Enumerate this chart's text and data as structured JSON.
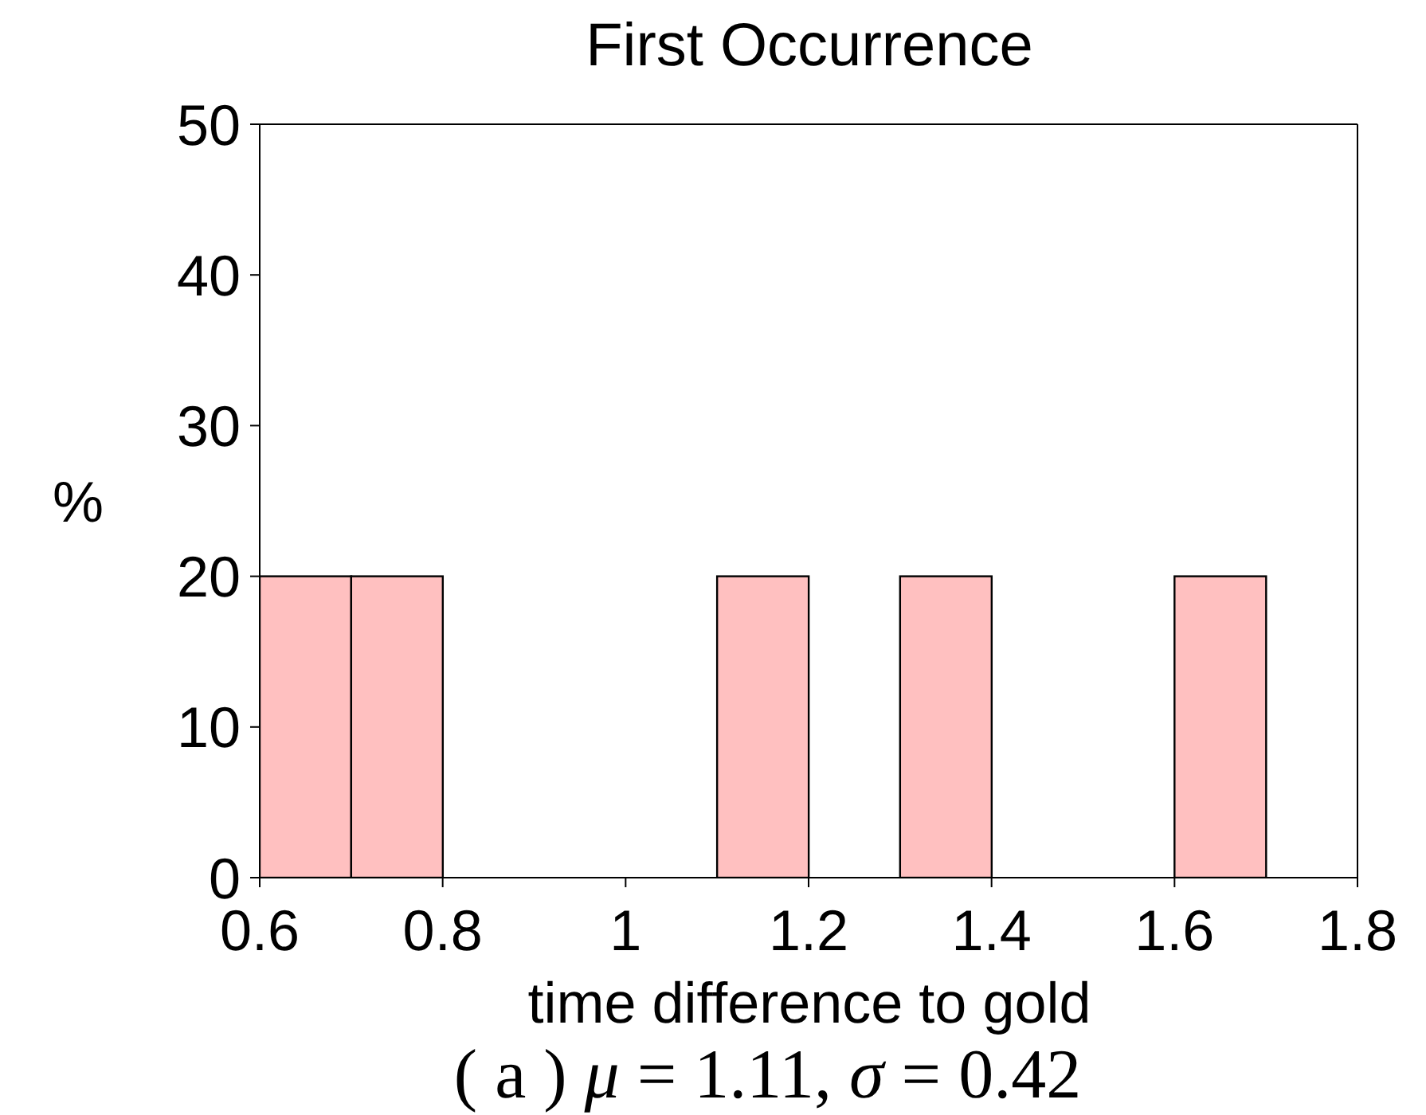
{
  "chart_data": {
    "type": "histogram",
    "title": "First Occurrence",
    "xlabel": "time difference to gold",
    "ylabel": "%",
    "bins": [
      0.6,
      0.7,
      0.8,
      0.9,
      1.0,
      1.1,
      1.2,
      1.3,
      1.4,
      1.5,
      1.6,
      1.7,
      1.8
    ],
    "values": [
      20,
      20,
      0,
      0,
      0,
      20,
      0,
      20,
      0,
      0,
      20,
      0
    ],
    "color": "#ffc0c0",
    "xlim": [
      0.6,
      1.8
    ],
    "xticks": [
      0.6,
      0.8,
      1,
      1.2,
      1.4,
      1.6,
      1.8
    ],
    "ylim": [
      0,
      50
    ],
    "yticks": [
      0,
      10,
      20,
      30,
      40,
      50
    ],
    "grid": false,
    "annotations": [
      "( a ) μ = 1.11, σ = 0.42"
    ]
  }
}
